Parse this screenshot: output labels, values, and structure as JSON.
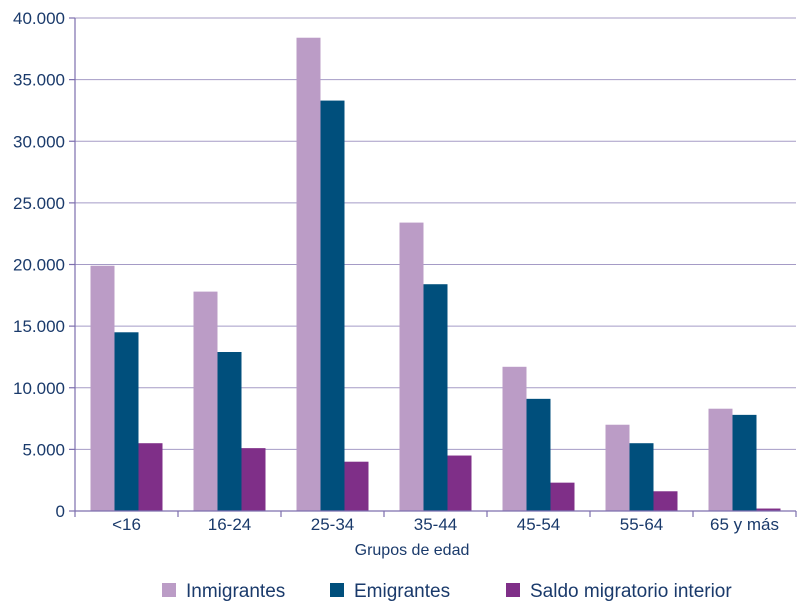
{
  "chart_data": {
    "type": "bar",
    "xlabel": "Grupos de edad",
    "ylabel": "",
    "ylim": [
      0,
      40000
    ],
    "ytick_values": [
      0,
      5000,
      10000,
      15000,
      20000,
      25000,
      30000,
      35000,
      40000
    ],
    "ytick_labels": [
      "0",
      "5.000",
      "10.000",
      "15.000",
      "20.000",
      "25.000",
      "30.000",
      "35.000",
      "40.000"
    ],
    "categories": [
      "<16",
      "16-24",
      "25-34",
      "35-44",
      "45-54",
      "55-64",
      "65 y más"
    ],
    "series": [
      {
        "name": "Inmigrantes",
        "color": "#bb9cc6",
        "values": [
          19900,
          17800,
          38400,
          23400,
          11700,
          7000,
          8300
        ]
      },
      {
        "name": "Emigrantes",
        "color": "#004f7c",
        "values": [
          14500,
          12900,
          33300,
          18400,
          9100,
          5500,
          7800
        ]
      },
      {
        "name": "Saldo migratorio interior",
        "color": "#7f2f88",
        "values": [
          5500,
          5100,
          4000,
          4500,
          2300,
          1600,
          200
        ]
      }
    ],
    "grid": true,
    "legend_position": "bottom",
    "gridline_color": "#a59bc6",
    "axis_color": "#7d6fae"
  }
}
